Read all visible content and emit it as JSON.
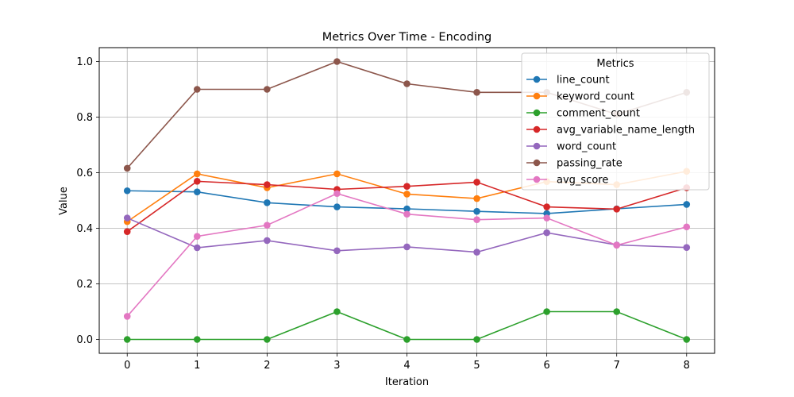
{
  "chart_data": {
    "type": "line",
    "title": "Metrics Over Time - Encoding",
    "xlabel": "Iteration",
    "ylabel": "Value",
    "x": [
      0,
      1,
      2,
      3,
      4,
      5,
      6,
      7,
      8
    ],
    "xlim": [
      -0.4,
      8.4
    ],
    "ylim": [
      -0.05,
      1.05
    ],
    "xticks": [
      "0",
      "1",
      "2",
      "3",
      "4",
      "5",
      "6",
      "7",
      "8"
    ],
    "yticks": [
      "0.0",
      "0.2",
      "0.4",
      "0.6",
      "0.8",
      "1.0"
    ],
    "ytick_values": [
      0.0,
      0.2,
      0.4,
      0.6,
      0.8,
      1.0
    ],
    "grid": true,
    "legend": {
      "title": "Metrics",
      "placement": "top-right"
    },
    "series": [
      {
        "name": "line_count",
        "color": "#1f77b4",
        "values": [
          0.535,
          0.531,
          0.492,
          0.477,
          0.47,
          0.461,
          0.453,
          0.47,
          0.486
        ]
      },
      {
        "name": "keyword_count",
        "color": "#ff7f0e",
        "values": [
          0.424,
          0.596,
          0.546,
          0.596,
          0.523,
          0.507,
          0.568,
          0.557,
          0.605
        ]
      },
      {
        "name": "comment_count",
        "color": "#2ca02c",
        "values": [
          0.0,
          0.0,
          0.0,
          0.1,
          0.0,
          0.0,
          0.1,
          0.1,
          0.0
        ]
      },
      {
        "name": "avg_variable_name_length",
        "color": "#d62728",
        "values": [
          0.388,
          0.569,
          0.557,
          0.54,
          0.551,
          0.566,
          0.477,
          0.469,
          0.546
        ]
      },
      {
        "name": "word_count",
        "color": "#9467bd",
        "values": [
          0.437,
          0.33,
          0.356,
          0.319,
          0.333,
          0.314,
          0.384,
          0.34,
          0.331
        ]
      },
      {
        "name": "passing_rate",
        "color": "#8c564b",
        "values": [
          0.616,
          0.9,
          0.9,
          1.0,
          0.92,
          0.889,
          0.889,
          0.81,
          0.889
        ]
      },
      {
        "name": "avg_score",
        "color": "#e377c2",
        "values": [
          0.083,
          0.371,
          0.411,
          0.525,
          0.451,
          0.431,
          0.437,
          0.339,
          0.405
        ]
      }
    ]
  }
}
